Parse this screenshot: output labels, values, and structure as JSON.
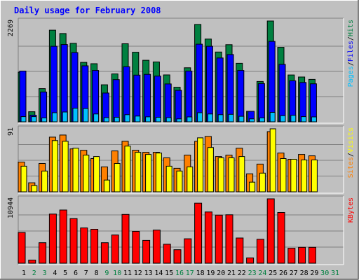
{
  "chart_data": {
    "title": "Daily usage for February 2008",
    "categories": [
      "1",
      "2",
      "3",
      "4",
      "5",
      "6",
      "7",
      "8",
      "9",
      "10",
      "11",
      "12",
      "13",
      "14",
      "15",
      "16",
      "17",
      "18",
      "19",
      "20",
      "21",
      "22",
      "23",
      "24",
      "25",
      "26",
      "27",
      "28",
      "29",
      "30",
      "31"
    ],
    "weekend_days": [
      "2",
      "3",
      "9",
      "10",
      "16",
      "17",
      "23",
      "24",
      "30",
      "31"
    ],
    "panels": [
      {
        "type": "bar",
        "name": "hits-files-pages",
        "max_label": "2269",
        "ylim": [
          0,
          2269
        ],
        "legend": [
          "Pages",
          "Files",
          "Hits"
        ],
        "legend_separator": "/",
        "series": [
          {
            "name": "Hits",
            "color": "#008040",
            "values": [
              1117,
              227,
              747,
              2063,
              1987,
              1766,
              1338,
              1308,
              834,
              1078,
              1757,
              1566,
              1385,
              1348,
              1056,
              779,
              1216,
              2192,
              1863,
              1571,
              1736,
              1318,
              237,
              908,
              2269,
              1676,
              1054,
              1008,
              955,
              0,
              0
            ]
          },
          {
            "name": "Files",
            "color": "#0000ff",
            "values": [
              1143,
              150,
              672,
              1700,
              1740,
              1559,
              1260,
              1156,
              647,
              950,
              1240,
              1051,
              1068,
              1029,
              852,
              707,
              1143,
              1747,
              1700,
              1437,
              1515,
              1156,
              237,
              860,
              1811,
              1292,
              923,
              885,
              855,
              0,
              0
            ]
          },
          {
            "name": "Pages",
            "color": "#00c0ff",
            "values": [
              117,
              117,
              88,
              205,
              220,
              307,
              300,
              177,
              95,
              103,
              161,
              129,
              112,
              103,
              95,
              66,
              110,
              205,
              176,
              161,
              169,
              124,
              66,
              88,
              213,
              139,
              147,
              117,
              110,
              0,
              0
            ]
          }
        ]
      },
      {
        "type": "bar",
        "name": "sites-visits",
        "max_label": "91",
        "ylim": [
          0,
          91
        ],
        "legend": [
          "Sites",
          "Visits"
        ],
        "legend_separator": "/",
        "series": [
          {
            "name": "Visits",
            "color": "#ff8000",
            "values": [
              43,
              13,
              41,
              79,
              82,
              62,
              60,
              48,
              36,
              59,
              73,
              60,
              57,
              57,
              49,
              34,
              53,
              73,
              80,
              51,
              53,
              63,
              26,
              40,
              87,
              56,
              47,
              54,
              52,
              0,
              0
            ]
          },
          {
            "name": "Sites",
            "color": "#ffff00",
            "values": [
              37,
              9,
              30,
              74,
              73,
              63,
              53,
              51,
              17,
              41,
              66,
              57,
              54,
              56,
              37,
              30,
              36,
              78,
              64,
              49,
              49,
              51,
              14,
              27,
              91,
              48,
              47,
              46,
              46,
              0,
              0
            ]
          }
        ]
      },
      {
        "type": "bar",
        "name": "kbytes",
        "max_label": "10944",
        "ylim": [
          0,
          10944
        ],
        "legend": [
          "KBytes"
        ],
        "legend_separator": "",
        "series": [
          {
            "name": "KBytes",
            "color": "#ff0000",
            "values": [
              5218,
              541,
              3483,
              8350,
              9043,
              7581,
              5991,
              5775,
              3483,
              4796,
              8286,
              5414,
              3875,
              5632,
              3226,
              2294,
              4156,
              10205,
              8711,
              8177,
              8233,
              4287,
              910,
              4069,
              10944,
              8626,
              2550,
              2704,
              2703,
              0,
              0
            ]
          }
        ]
      }
    ]
  }
}
